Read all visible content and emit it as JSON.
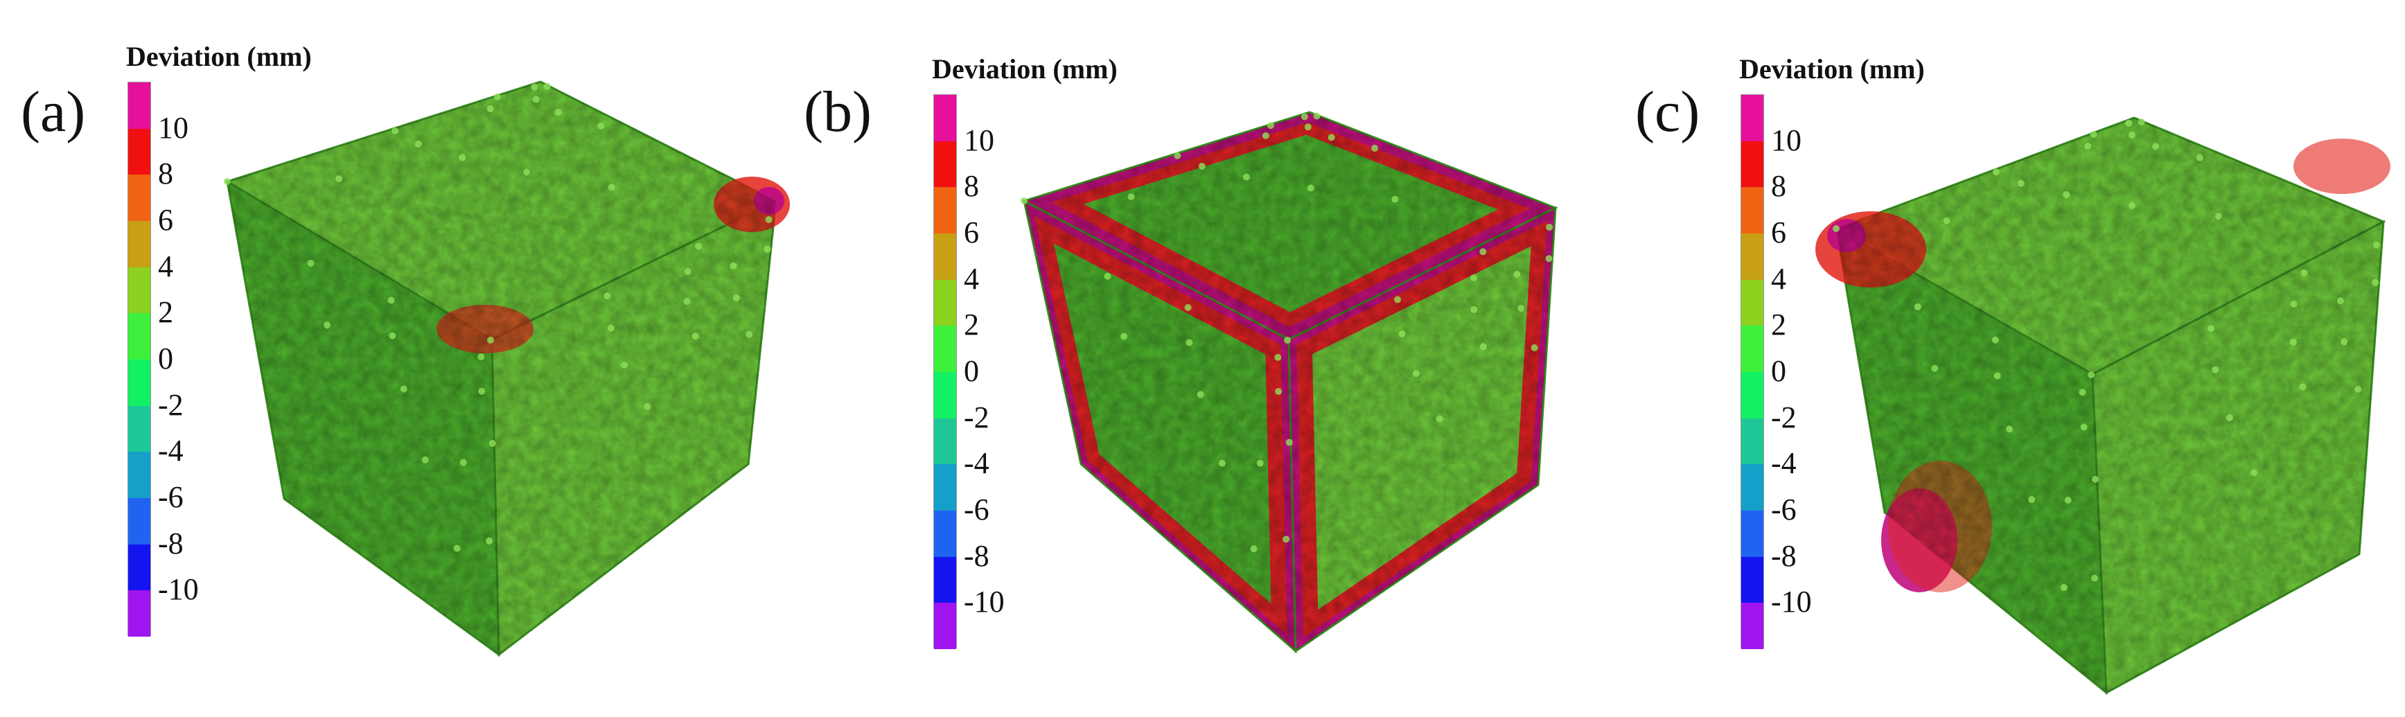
{
  "colorbar": {
    "title": "Deviation (mm)",
    "ticks": [
      "10",
      "8",
      "6",
      "4",
      "2",
      "0",
      "-2",
      "-4",
      "-6",
      "-8",
      "-10"
    ],
    "colors": [
      "#e6109c",
      "#f01010",
      "#f06414",
      "#c8a014",
      "#8cd21e",
      "#3cf03c",
      "#14f064",
      "#1ec896",
      "#14a0c8",
      "#1e64f0",
      "#1414f0",
      "#a014f0"
    ]
  },
  "surface_colors": {
    "base_green": "#4caf2c",
    "light_green": "#6ec93a",
    "dark_green": "#3a8f22",
    "edge_red": "#e2231a",
    "magenta": "#c2107e"
  },
  "panels": [
    {
      "letter": "(a)"
    },
    {
      "letter": "(b)"
    },
    {
      "letter": "(c)"
    }
  ]
}
